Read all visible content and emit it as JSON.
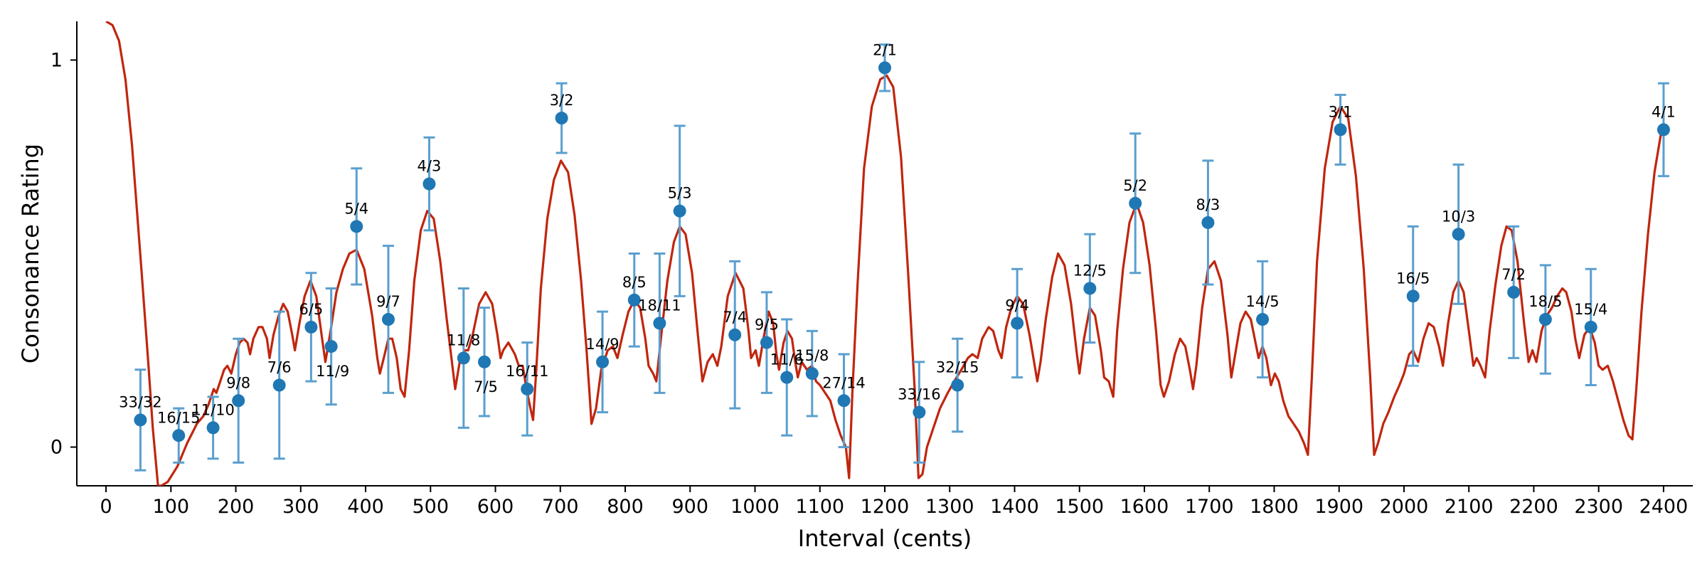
{
  "chart_data": {
    "type": "scatter",
    "title": "",
    "xlabel": "Interval (cents)",
    "ylabel": "Consonance Rating",
    "xlim": [
      -45,
      2445
    ],
    "ylim": [
      -0.1,
      1.1
    ],
    "x_ticks": [
      0,
      100,
      200,
      300,
      400,
      500,
      600,
      700,
      800,
      900,
      1000,
      1100,
      1200,
      1300,
      1400,
      1500,
      1600,
      1700,
      1800,
      1900,
      2000,
      2100,
      2200,
      2300,
      2400
    ],
    "x_tick_labels": [
      "0",
      "100",
      "200",
      "300",
      "400",
      "500",
      "600",
      "700",
      "800",
      "900",
      "1000",
      "1100",
      "1200",
      "1300",
      "1400",
      "1500",
      "1600",
      "1700",
      "1800",
      "1900",
      "2000",
      "2100",
      "2200",
      "2300",
      "2400"
    ],
    "y_ticks": [
      0,
      1
    ],
    "y_tick_labels": [
      "0",
      "1"
    ],
    "grid": false,
    "colors": {
      "points": "#1f77b4",
      "error_bars": "#5a9fcf",
      "curve": "#c0260e"
    },
    "points": [
      {
        "label": "33/32",
        "x": 53,
        "y": 0.07,
        "err": 0.13
      },
      {
        "label": "16/15",
        "x": 112,
        "y": 0.03,
        "err": 0.07
      },
      {
        "label": "11/10",
        "x": 165,
        "y": 0.05,
        "err": 0.08
      },
      {
        "label": "9/8",
        "x": 204,
        "y": 0.12,
        "err": 0.16
      },
      {
        "label": "7/6",
        "x": 267,
        "y": 0.16,
        "err": 0.19
      },
      {
        "label": "6/5",
        "x": 316,
        "y": 0.31,
        "err": 0.14
      },
      {
        "label": "11/9",
        "x": 347,
        "y": 0.26,
        "err": 0.15
      },
      {
        "label": "5/4",
        "x": 386,
        "y": 0.57,
        "err": 0.15
      },
      {
        "label": "9/7",
        "x": 435,
        "y": 0.33,
        "err": 0.19
      },
      {
        "label": "4/3",
        "x": 498,
        "y": 0.68,
        "err": 0.12
      },
      {
        "label": "11/8",
        "x": 551,
        "y": 0.23,
        "err": 0.18
      },
      {
        "label": "7/5",
        "x": 583,
        "y": 0.22,
        "err": 0.14
      },
      {
        "label": "16/11",
        "x": 649,
        "y": 0.15,
        "err": 0.12
      },
      {
        "label": "3/2",
        "x": 702,
        "y": 0.85,
        "err": 0.09
      },
      {
        "label": "14/9",
        "x": 765,
        "y": 0.22,
        "err": 0.13
      },
      {
        "label": "8/5",
        "x": 814,
        "y": 0.38,
        "err": 0.12
      },
      {
        "label": "18/11",
        "x": 853,
        "y": 0.32,
        "err": 0.18
      },
      {
        "label": "5/3",
        "x": 884,
        "y": 0.61,
        "err": 0.22
      },
      {
        "label": "7/4",
        "x": 969,
        "y": 0.29,
        "err": 0.19
      },
      {
        "label": "9/5",
        "x": 1018,
        "y": 0.27,
        "err": 0.13
      },
      {
        "label": "11/6",
        "x": 1049,
        "y": 0.18,
        "err": 0.15
      },
      {
        "label": "15/8",
        "x": 1088,
        "y": 0.19,
        "err": 0.11
      },
      {
        "label": "27/14",
        "x": 1137,
        "y": 0.12,
        "err": 0.12
      },
      {
        "label": "2/1",
        "x": 1200,
        "y": 0.98,
        "err": 0.06
      },
      {
        "label": "33/16",
        "x": 1253,
        "y": 0.09,
        "err": 0.13
      },
      {
        "label": "32/15",
        "x": 1312,
        "y": 0.16,
        "err": 0.12
      },
      {
        "label": "9/4",
        "x": 1404,
        "y": 0.32,
        "err": 0.14
      },
      {
        "label": "12/5",
        "x": 1516,
        "y": 0.41,
        "err": 0.14
      },
      {
        "label": "5/2",
        "x": 1586,
        "y": 0.63,
        "err": 0.18
      },
      {
        "label": "8/3",
        "x": 1698,
        "y": 0.58,
        "err": 0.16
      },
      {
        "label": "14/5",
        "x": 1782,
        "y": 0.33,
        "err": 0.15
      },
      {
        "label": "3/1",
        "x": 1902,
        "y": 0.82,
        "err": 0.09
      },
      {
        "label": "16/5",
        "x": 2014,
        "y": 0.39,
        "err": 0.18
      },
      {
        "label": "10/3",
        "x": 2084,
        "y": 0.55,
        "err": 0.18
      },
      {
        "label": "7/2",
        "x": 2169,
        "y": 0.4,
        "err": 0.17
      },
      {
        "label": "18/5",
        "x": 2218,
        "y": 0.33,
        "err": 0.14
      },
      {
        "label": "15/4",
        "x": 2288,
        "y": 0.31,
        "err": 0.15
      },
      {
        "label": "4/1",
        "x": 2400,
        "y": 0.82,
        "err": 0.12
      }
    ],
    "curve": [
      [
        0,
        1.1
      ],
      [
        10,
        1.09
      ],
      [
        20,
        1.05
      ],
      [
        30,
        0.95
      ],
      [
        40,
        0.78
      ],
      [
        55,
        0.45
      ],
      [
        65,
        0.22
      ],
      [
        72,
        0.05
      ],
      [
        78,
        -0.06
      ],
      [
        80,
        -0.1
      ],
      [
        85,
        -0.1
      ],
      [
        95,
        -0.09
      ],
      [
        110,
        -0.05
      ],
      [
        125,
        0.01
      ],
      [
        140,
        0.06
      ],
      [
        150,
        0.08
      ],
      [
        158,
        0.11
      ],
      [
        166,
        0.15
      ],
      [
        170,
        0.14
      ],
      [
        176,
        0.17
      ],
      [
        182,
        0.2
      ],
      [
        187,
        0.21
      ],
      [
        193,
        0.19
      ],
      [
        200,
        0.24
      ],
      [
        206,
        0.27
      ],
      [
        212,
        0.28
      ],
      [
        218,
        0.27
      ],
      [
        222,
        0.24
      ],
      [
        227,
        0.28
      ],
      [
        235,
        0.31
      ],
      [
        241,
        0.31
      ],
      [
        248,
        0.28
      ],
      [
        252,
        0.23
      ],
      [
        258,
        0.29
      ],
      [
        266,
        0.34
      ],
      [
        273,
        0.37
      ],
      [
        280,
        0.35
      ],
      [
        287,
        0.29
      ],
      [
        291,
        0.25
      ],
      [
        298,
        0.32
      ],
      [
        306,
        0.39
      ],
      [
        315,
        0.43
      ],
      [
        324,
        0.39
      ],
      [
        333,
        0.28
      ],
      [
        338,
        0.22
      ],
      [
        346,
        0.3
      ],
      [
        355,
        0.4
      ],
      [
        365,
        0.46
      ],
      [
        375,
        0.5
      ],
      [
        386,
        0.51
      ],
      [
        398,
        0.46
      ],
      [
        410,
        0.34
      ],
      [
        418,
        0.23
      ],
      [
        422,
        0.19
      ],
      [
        428,
        0.23
      ],
      [
        435,
        0.28
      ],
      [
        441,
        0.28
      ],
      [
        448,
        0.23
      ],
      [
        454,
        0.15
      ],
      [
        460,
        0.13
      ],
      [
        467,
        0.25
      ],
      [
        475,
        0.43
      ],
      [
        485,
        0.56
      ],
      [
        495,
        0.61
      ],
      [
        505,
        0.59
      ],
      [
        515,
        0.48
      ],
      [
        525,
        0.33
      ],
      [
        533,
        0.22
      ],
      [
        538,
        0.15
      ],
      [
        545,
        0.22
      ],
      [
        553,
        0.25
      ],
      [
        558,
        0.25
      ],
      [
        565,
        0.29
      ],
      [
        575,
        0.37
      ],
      [
        585,
        0.4
      ],
      [
        595,
        0.37
      ],
      [
        603,
        0.29
      ],
      [
        608,
        0.23
      ],
      [
        612,
        0.25
      ],
      [
        620,
        0.27
      ],
      [
        630,
        0.24
      ],
      [
        636,
        0.21
      ],
      [
        642,
        0.21
      ],
      [
        648,
        0.15
      ],
      [
        654,
        0.1
      ],
      [
        658,
        0.07
      ],
      [
        663,
        0.2
      ],
      [
        670,
        0.41
      ],
      [
        680,
        0.59
      ],
      [
        690,
        0.69
      ],
      [
        701,
        0.74
      ],
      [
        712,
        0.71
      ],
      [
        722,
        0.6
      ],
      [
        732,
        0.43
      ],
      [
        740,
        0.26
      ],
      [
        745,
        0.14
      ],
      [
        748,
        0.06
      ],
      [
        755,
        0.1
      ],
      [
        763,
        0.2
      ],
      [
        773,
        0.25
      ],
      [
        781,
        0.26
      ],
      [
        788,
        0.23
      ],
      [
        796,
        0.29
      ],
      [
        805,
        0.35
      ],
      [
        814,
        0.38
      ],
      [
        823,
        0.36
      ],
      [
        831,
        0.28
      ],
      [
        836,
        0.21
      ],
      [
        843,
        0.19
      ],
      [
        848,
        0.17
      ],
      [
        855,
        0.28
      ],
      [
        865,
        0.43
      ],
      [
        875,
        0.53
      ],
      [
        884,
        0.57
      ],
      [
        893,
        0.55
      ],
      [
        903,
        0.45
      ],
      [
        912,
        0.29
      ],
      [
        919,
        0.17
      ],
      [
        927,
        0.22
      ],
      [
        935,
        0.24
      ],
      [
        942,
        0.21
      ],
      [
        948,
        0.26
      ],
      [
        958,
        0.39
      ],
      [
        970,
        0.45
      ],
      [
        982,
        0.41
      ],
      [
        990,
        0.3
      ],
      [
        994,
        0.23
      ],
      [
        1001,
        0.25
      ],
      [
        1006,
        0.21
      ],
      [
        1013,
        0.28
      ],
      [
        1021,
        0.35
      ],
      [
        1028,
        0.32
      ],
      [
        1033,
        0.24
      ],
      [
        1037,
        0.2
      ],
      [
        1044,
        0.27
      ],
      [
        1050,
        0.3
      ],
      [
        1057,
        0.28
      ],
      [
        1062,
        0.22
      ],
      [
        1066,
        0.18
      ],
      [
        1072,
        0.22
      ],
      [
        1080,
        0.2
      ],
      [
        1088,
        0.21
      ],
      [
        1094,
        0.17
      ],
      [
        1100,
        0.16
      ],
      [
        1108,
        0.14
      ],
      [
        1116,
        0.12
      ],
      [
        1124,
        0.07
      ],
      [
        1132,
        0.03
      ],
      [
        1140,
        0.0
      ],
      [
        1145,
        -0.08
      ],
      [
        1150,
        0.14
      ],
      [
        1158,
        0.42
      ],
      [
        1168,
        0.72
      ],
      [
        1180,
        0.88
      ],
      [
        1193,
        0.95
      ],
      [
        1203,
        0.96
      ],
      [
        1213,
        0.93
      ],
      [
        1225,
        0.75
      ],
      [
        1236,
        0.45
      ],
      [
        1246,
        0.15
      ],
      [
        1252,
        -0.08
      ],
      [
        1258,
        -0.07
      ],
      [
        1265,
        0.0
      ],
      [
        1275,
        0.05
      ],
      [
        1285,
        0.1
      ],
      [
        1297,
        0.14
      ],
      [
        1307,
        0.17
      ],
      [
        1318,
        0.2
      ],
      [
        1328,
        0.23
      ],
      [
        1335,
        0.24
      ],
      [
        1343,
        0.23
      ],
      [
        1350,
        0.28
      ],
      [
        1360,
        0.31
      ],
      [
        1367,
        0.3
      ],
      [
        1375,
        0.25
      ],
      [
        1380,
        0.23
      ],
      [
        1387,
        0.31
      ],
      [
        1395,
        0.36
      ],
      [
        1404,
        0.39
      ],
      [
        1413,
        0.37
      ],
      [
        1423,
        0.29
      ],
      [
        1430,
        0.22
      ],
      [
        1435,
        0.17
      ],
      [
        1440,
        0.22
      ],
      [
        1448,
        0.33
      ],
      [
        1458,
        0.44
      ],
      [
        1467,
        0.5
      ],
      [
        1477,
        0.47
      ],
      [
        1487,
        0.37
      ],
      [
        1496,
        0.24
      ],
      [
        1500,
        0.19
      ],
      [
        1507,
        0.28
      ],
      [
        1516,
        0.36
      ],
      [
        1524,
        0.34
      ],
      [
        1533,
        0.25
      ],
      [
        1538,
        0.18
      ],
      [
        1545,
        0.17
      ],
      [
        1552,
        0.13
      ],
      [
        1558,
        0.3
      ],
      [
        1567,
        0.46
      ],
      [
        1577,
        0.58
      ],
      [
        1588,
        0.63
      ],
      [
        1598,
        0.58
      ],
      [
        1608,
        0.47
      ],
      [
        1618,
        0.3
      ],
      [
        1625,
        0.16
      ],
      [
        1630,
        0.13
      ],
      [
        1638,
        0.17
      ],
      [
        1647,
        0.24
      ],
      [
        1655,
        0.28
      ],
      [
        1663,
        0.26
      ],
      [
        1670,
        0.2
      ],
      [
        1675,
        0.15
      ],
      [
        1680,
        0.21
      ],
      [
        1689,
        0.36
      ],
      [
        1698,
        0.46
      ],
      [
        1708,
        0.48
      ],
      [
        1718,
        0.43
      ],
      [
        1728,
        0.29
      ],
      [
        1734,
        0.18
      ],
      [
        1740,
        0.24
      ],
      [
        1748,
        0.32
      ],
      [
        1756,
        0.35
      ],
      [
        1764,
        0.33
      ],
      [
        1770,
        0.28
      ],
      [
        1776,
        0.23
      ],
      [
        1782,
        0.26
      ],
      [
        1788,
        0.23
      ],
      [
        1795,
        0.16
      ],
      [
        1801,
        0.19
      ],
      [
        1807,
        0.17
      ],
      [
        1814,
        0.12
      ],
      [
        1822,
        0.08
      ],
      [
        1830,
        0.06
      ],
      [
        1838,
        0.04
      ],
      [
        1846,
        0.01
      ],
      [
        1852,
        -0.02
      ],
      [
        1858,
        0.18
      ],
      [
        1866,
        0.48
      ],
      [
        1878,
        0.72
      ],
      [
        1890,
        0.84
      ],
      [
        1902,
        0.88
      ],
      [
        1914,
        0.85
      ],
      [
        1926,
        0.7
      ],
      [
        1938,
        0.46
      ],
      [
        1948,
        0.18
      ],
      [
        1954,
        -0.02
      ],
      [
        1960,
        0.01
      ],
      [
        1968,
        0.06
      ],
      [
        1976,
        0.09
      ],
      [
        1985,
        0.13
      ],
      [
        1993,
        0.16
      ],
      [
        2000,
        0.19
      ],
      [
        2008,
        0.24
      ],
      [
        2014,
        0.25
      ],
      [
        2022,
        0.22
      ],
      [
        2030,
        0.28
      ],
      [
        2038,
        0.32
      ],
      [
        2046,
        0.31
      ],
      [
        2054,
        0.26
      ],
      [
        2060,
        0.21
      ],
      [
        2068,
        0.32
      ],
      [
        2076,
        0.4
      ],
      [
        2084,
        0.43
      ],
      [
        2092,
        0.4
      ],
      [
        2100,
        0.3
      ],
      [
        2107,
        0.21
      ],
      [
        2112,
        0.23
      ],
      [
        2118,
        0.21
      ],
      [
        2125,
        0.18
      ],
      [
        2132,
        0.3
      ],
      [
        2141,
        0.42
      ],
      [
        2150,
        0.52
      ],
      [
        2158,
        0.57
      ],
      [
        2166,
        0.56
      ],
      [
        2175,
        0.48
      ],
      [
        2185,
        0.32
      ],
      [
        2192,
        0.22
      ],
      [
        2198,
        0.25
      ],
      [
        2204,
        0.22
      ],
      [
        2212,
        0.3
      ],
      [
        2220,
        0.34
      ],
      [
        2228,
        0.36
      ],
      [
        2236,
        0.39
      ],
      [
        2244,
        0.41
      ],
      [
        2250,
        0.4
      ],
      [
        2258,
        0.35
      ],
      [
        2264,
        0.28
      ],
      [
        2270,
        0.23
      ],
      [
        2278,
        0.29
      ],
      [
        2286,
        0.31
      ],
      [
        2294,
        0.27
      ],
      [
        2300,
        0.21
      ],
      [
        2306,
        0.2
      ],
      [
        2314,
        0.21
      ],
      [
        2322,
        0.17
      ],
      [
        2330,
        0.12
      ],
      [
        2338,
        0.07
      ],
      [
        2346,
        0.03
      ],
      [
        2352,
        0.02
      ],
      [
        2358,
        0.15
      ],
      [
        2366,
        0.35
      ],
      [
        2376,
        0.55
      ],
      [
        2386,
        0.71
      ],
      [
        2396,
        0.81
      ],
      [
        2400,
        0.83
      ]
    ]
  }
}
